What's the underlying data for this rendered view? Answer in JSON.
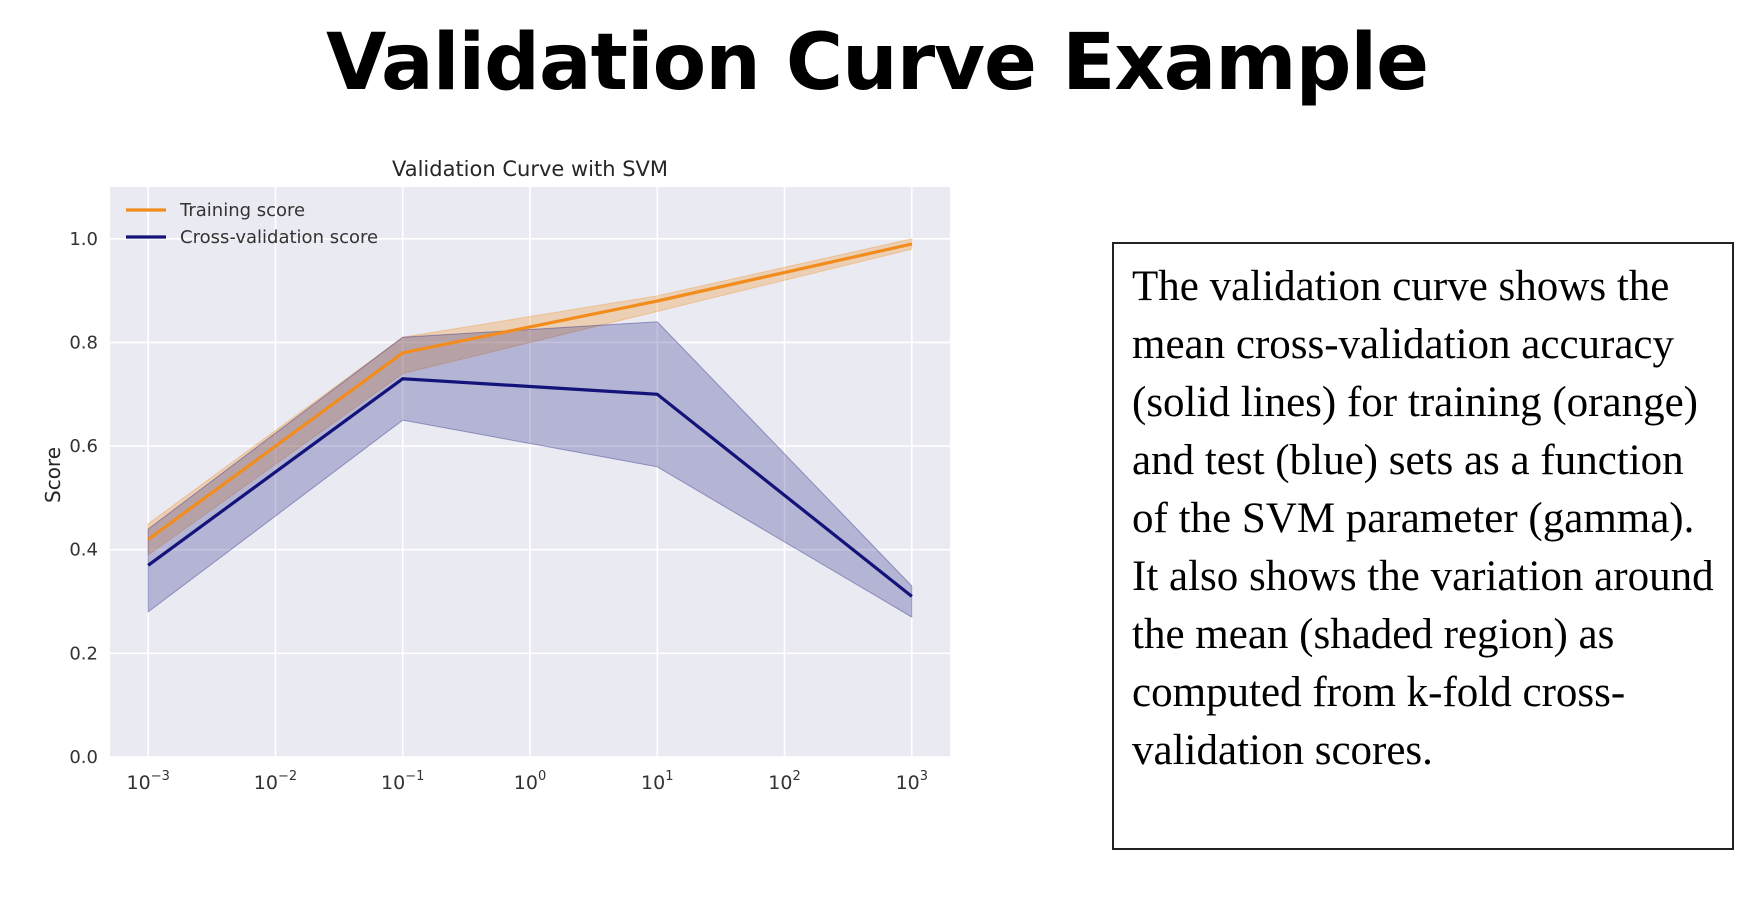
{
  "slide": {
    "title": "Validation Curve Example",
    "description": "The validation curve shows the mean cross-validation accuracy (solid lines) for training (orange) and test (blue) sets as a function of the SVM parameter (gamma).  It also shows the variation around the mean (shaded region) as computed from k-fold cross-validation scores."
  },
  "chart_data": {
    "type": "line",
    "title": "Validation Curve with SVM",
    "xlabel": "",
    "ylabel": "Score",
    "x_scale": "log",
    "x": [
      0.001,
      0.1,
      10,
      1000
    ],
    "xlim": [
      0.001,
      1000
    ],
    "ylim": [
      0.0,
      1.1
    ],
    "x_ticks": [
      {
        "exp": "−3"
      },
      {
        "exp": "−2"
      },
      {
        "exp": "−1"
      },
      {
        "exp": "0"
      },
      {
        "exp": "1"
      },
      {
        "exp": "2"
      },
      {
        "exp": "3"
      }
    ],
    "x_tick_base": "10",
    "y_ticks": [
      "0.0",
      "0.2",
      "0.4",
      "0.6",
      "0.8",
      "1.0"
    ],
    "grid": true,
    "legend_position": "top-left",
    "background_color": "#eaeaf2",
    "series": [
      {
        "name": "Training score",
        "color": "#f28c1c",
        "values": [
          0.42,
          0.78,
          0.88,
          0.99
        ],
        "lower": [
          0.39,
          0.74,
          0.86,
          0.98
        ],
        "upper": [
          0.45,
          0.81,
          0.89,
          1.0
        ]
      },
      {
        "name": "Cross-validation score",
        "color": "#14137a",
        "values": [
          0.37,
          0.73,
          0.7,
          0.31
        ],
        "lower": [
          0.28,
          0.65,
          0.56,
          0.27
        ],
        "upper": [
          0.44,
          0.81,
          0.84,
          0.33
        ]
      }
    ]
  }
}
